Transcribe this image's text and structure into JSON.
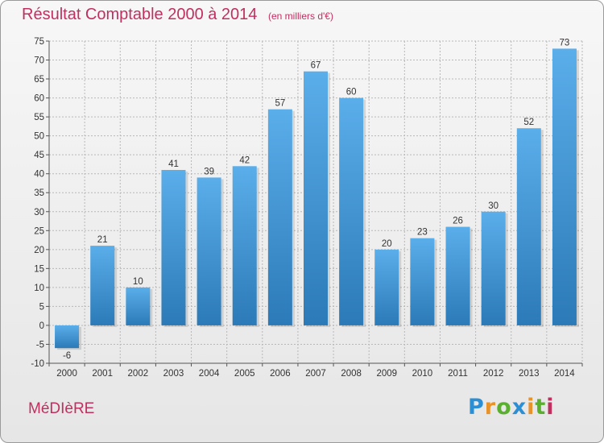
{
  "title": "Résultat Comptable 2000 à 2014",
  "unit": "(en milliers d'€)",
  "commune": "MéDIèRE",
  "logo": {
    "text": "Proxiti",
    "letters": [
      "P",
      "r",
      "o",
      "x",
      "i",
      "t",
      "i"
    ],
    "letter_colors": [
      "#2b8fd6",
      "#e8932a",
      "#5ab02e",
      "#2b8fd6",
      "#e8932a",
      "#5ab02e",
      "#c0305f"
    ]
  },
  "colors": {
    "bar_top": "#5aaeea",
    "bar_bottom": "#2c7ab8",
    "title": "#c0305f",
    "grid": "#b8b8b8"
  },
  "chart_data": {
    "type": "bar",
    "title": "Résultat Comptable 2000 à 2014",
    "ylabel": "en milliers d'€",
    "xlabel": "",
    "grid": true,
    "ylim": [
      -10,
      75
    ],
    "yticks": [
      -10,
      -5,
      0,
      5,
      10,
      15,
      20,
      25,
      30,
      35,
      40,
      45,
      50,
      55,
      60,
      65,
      70,
      75
    ],
    "categories": [
      "2000",
      "2001",
      "2002",
      "2003",
      "2004",
      "2005",
      "2006",
      "2007",
      "2008",
      "2009",
      "2010",
      "2011",
      "2012",
      "2013",
      "2014"
    ],
    "values": [
      -6,
      21,
      10,
      41,
      39,
      42,
      57,
      67,
      60,
      20,
      23,
      26,
      30,
      52,
      73
    ]
  }
}
